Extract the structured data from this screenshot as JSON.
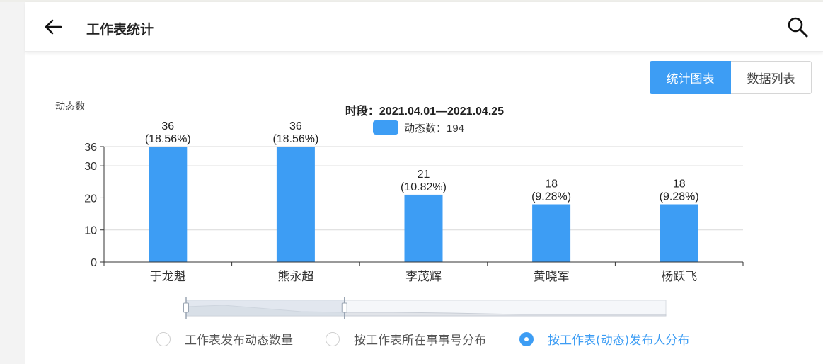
{
  "header": {
    "title": "工作表统计"
  },
  "tabs": [
    {
      "label": "统计图表",
      "active": true
    },
    {
      "label": "数据列表",
      "active": false
    }
  ],
  "colors": {
    "accent": "#3d9df4",
    "bar": "#3d9df4"
  },
  "chart_data": {
    "type": "bar",
    "title": "时段：2021.04.01—2021.04.25",
    "ylabel": "动态数",
    "legend_label": "动态数：194",
    "categories": [
      "于龙魁",
      "熊永超",
      "李茂辉",
      "黄晓军",
      "杨跃飞"
    ],
    "values": [
      36,
      36,
      21,
      18,
      18
    ],
    "percent_labels": [
      "(18.56%)",
      "(18.56%)",
      "(10.82%)",
      "(9.28%)",
      "(9.28%)"
    ],
    "yticks": [
      0,
      10,
      20,
      30,
      36
    ],
    "ylim": [
      0,
      36
    ],
    "grid": true,
    "legend_position": "top-center"
  },
  "zoom_slider": {
    "start": 0,
    "end": 0.33
  },
  "radio_options": [
    {
      "label": "工作表发布动态数量",
      "checked": false
    },
    {
      "label": "按工作表所在事事号分布",
      "checked": false
    },
    {
      "label": "按工作表(动态)发布人分布",
      "checked": true
    }
  ]
}
